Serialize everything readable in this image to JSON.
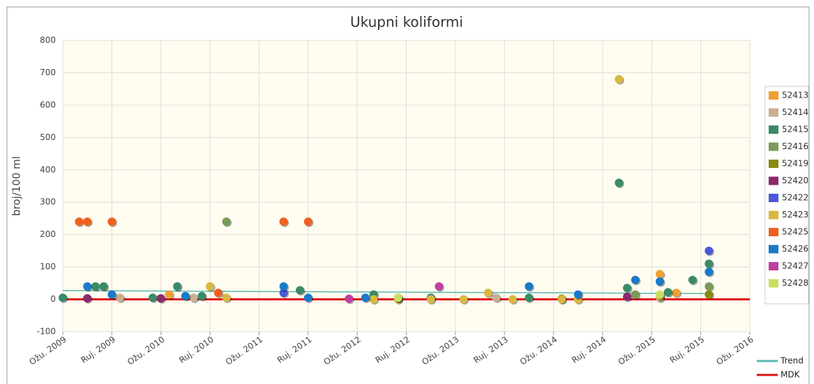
{
  "chart_data": {
    "type": "scatter",
    "title": "Ukupni koliformi",
    "ylabel": "broj/100 ml",
    "xlim": [
      "2009-03",
      "2016-03"
    ],
    "xticks": [
      {
        "value": "2009-03",
        "label": "Ožu. 2009"
      },
      {
        "value": "2009-09",
        "label": "Ruj. 2009"
      },
      {
        "value": "2010-03",
        "label": "Ožu. 2010"
      },
      {
        "value": "2010-09",
        "label": "Ruj. 2010"
      },
      {
        "value": "2011-03",
        "label": "Ožu. 2011"
      },
      {
        "value": "2011-09",
        "label": "Ruj. 2011"
      },
      {
        "value": "2012-03",
        "label": "Ožu. 2012"
      },
      {
        "value": "2012-09",
        "label": "Ruj. 2012"
      },
      {
        "value": "2013-03",
        "label": "Ožu. 2013"
      },
      {
        "value": "2013-09",
        "label": "Ruj. 2013"
      },
      {
        "value": "2014-03",
        "label": "Ožu. 2014"
      },
      {
        "value": "2014-09",
        "label": "Ruj. 2014"
      },
      {
        "value": "2015-03",
        "label": "Ožu. 2015"
      },
      {
        "value": "2015-09",
        "label": "Ruj. 2015"
      },
      {
        "value": "2016-03",
        "label": "Ožu. 2016"
      }
    ],
    "ylim": [
      -100,
      800
    ],
    "yticks": [
      -100,
      0,
      100,
      200,
      300,
      400,
      500,
      600,
      700,
      800
    ],
    "grid": true,
    "legend": "right",
    "series": [
      {
        "name": "52413",
        "color": "#f0a030",
        "x": [
          "2010-04",
          "2015-04",
          "2015-06"
        ],
        "values": [
          15,
          78,
          20
        ]
      },
      {
        "name": "52414",
        "color": "#c8b090",
        "x": [
          "2009-10",
          "2010-07",
          "2013-08",
          "2015-04"
        ],
        "values": [
          5,
          5,
          5,
          5
        ]
      },
      {
        "name": "52415",
        "color": "#3a8a6a",
        "x": [
          "2009-03",
          "2009-07",
          "2009-08",
          "2010-02",
          "2010-05",
          "2010-08",
          "2011-08",
          "2012-05",
          "2012-12",
          "2013-12",
          "2014-11",
          "2014-12",
          "2015-05",
          "2015-08",
          "2015-10"
        ],
        "values": [
          5,
          40,
          40,
          5,
          40,
          10,
          28,
          15,
          5,
          5,
          360,
          35,
          22,
          60,
          110
        ]
      },
      {
        "name": "52416",
        "color": "#7a9a5a",
        "x": [
          "2010-11",
          "2015-01",
          "2015-10"
        ],
        "values": [
          240,
          15,
          40
        ]
      },
      {
        "name": "52419",
        "color": "#8a8a10",
        "x": [
          "2014-04",
          "2015-10"
        ],
        "values": [
          2,
          15
        ]
      },
      {
        "name": "52420",
        "color": "#8a2a6a",
        "x": [
          "2009-06",
          "2010-03",
          "2014-12"
        ],
        "values": [
          3,
          3,
          8
        ]
      },
      {
        "name": "52422",
        "color": "#4a5ad8",
        "x": [
          "2011-06",
          "2015-10"
        ],
        "values": [
          20,
          150
        ]
      },
      {
        "name": "52423",
        "color": "#d8b840",
        "x": [
          "2010-09",
          "2010-11",
          "2012-05",
          "2012-08",
          "2012-12",
          "2013-04",
          "2013-07",
          "2013-10",
          "2014-04",
          "2014-06",
          "2014-11",
          "2015-04"
        ],
        "values": [
          40,
          5,
          0,
          0,
          0,
          0,
          20,
          0,
          0,
          0,
          680,
          10
        ]
      },
      {
        "name": "52425",
        "color": "#f06020",
        "x": [
          "2009-05",
          "2009-06",
          "2009-09",
          "2010-10",
          "2011-06",
          "2011-09"
        ],
        "values": [
          240,
          240,
          240,
          20,
          240,
          240
        ]
      },
      {
        "name": "52426",
        "color": "#1a7ac8",
        "x": [
          "2009-06",
          "2009-09",
          "2010-06",
          "2011-06",
          "2011-09",
          "2012-04",
          "2012-08",
          "2013-12",
          "2014-06",
          "2015-01",
          "2015-04",
          "2015-10"
        ],
        "values": [
          40,
          15,
          10,
          40,
          5,
          5,
          5,
          40,
          15,
          60,
          55,
          85
        ]
      },
      {
        "name": "52427",
        "color": "#c040a0",
        "x": [
          "2012-02",
          "2013-01"
        ],
        "values": [
          2,
          40
        ]
      },
      {
        "name": "52428",
        "color": "#c8e060",
        "x": [
          "2012-08",
          "2015-04"
        ],
        "values": [
          5,
          15
        ]
      }
    ],
    "lines": [
      {
        "name": "Trend",
        "color": "#5ab8b0",
        "x": [
          "2009-03",
          "2015-10"
        ],
        "values": [
          27,
          18
        ]
      },
      {
        "name": "MDK",
        "color": "#e01010",
        "x": [
          "2009-03",
          "2016-03"
        ],
        "values": [
          0,
          0
        ]
      }
    ]
  }
}
